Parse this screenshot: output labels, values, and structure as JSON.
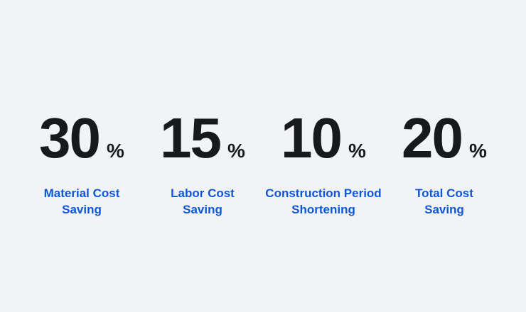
{
  "theme": {
    "background": "#f2f3f7",
    "number_color": "#18191c",
    "label_color": "#0b57d8"
  },
  "stats": [
    {
      "value": "30",
      "unit": "%",
      "label_line1": "Material Cost",
      "label_line2": "Saving"
    },
    {
      "value": "15",
      "unit": "%",
      "label_line1": "Labor Cost",
      "label_line2": "Saving"
    },
    {
      "value": "10",
      "unit": "%",
      "label_line1": "Construction Period",
      "label_line2": "Shortening"
    },
    {
      "value": "20",
      "unit": "%",
      "label_line1": "Total Cost",
      "label_line2": "Saving"
    }
  ]
}
